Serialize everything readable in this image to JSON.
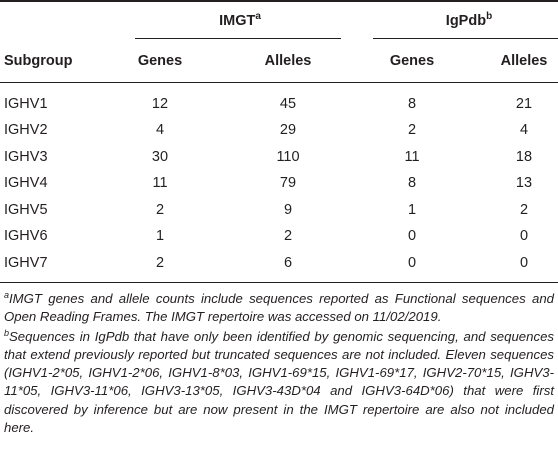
{
  "table": {
    "groups": [
      {
        "label": "IMGT",
        "sup": "a"
      },
      {
        "label": "IgPdb",
        "sup": "b"
      }
    ],
    "columns": [
      "Subgroup",
      "Genes",
      "Alleles",
      "Genes",
      "Alleles"
    ],
    "rows": [
      [
        "IGHV1",
        "12",
        "45",
        "8",
        "21"
      ],
      [
        "IGHV2",
        "4",
        "29",
        "2",
        "4"
      ],
      [
        "IGHV3",
        "30",
        "110",
        "11",
        "18"
      ],
      [
        "IGHV4",
        "11",
        "79",
        "8",
        "13"
      ],
      [
        "IGHV5",
        "2",
        "9",
        "1",
        "2"
      ],
      [
        "IGHV6",
        "1",
        "2",
        "0",
        "0"
      ],
      [
        "IGHV7",
        "2",
        "6",
        "0",
        "0"
      ]
    ]
  },
  "footnotes": [
    {
      "mark": "a",
      "text": "IMGT genes and allele counts include sequences reported as Functional sequences and Open Reading Frames. The IMGT repertoire was accessed on 11/02/2019."
    },
    {
      "mark": "b",
      "text": "Sequences in IgPdb that have only been identified by genomic sequencing, and sequences that extend previously reported but truncated sequences are not included. Eleven sequences (IGHV1-2*05, IGHV1-2*06, IGHV1-8*03, IGHV1-69*15, IGHV1-69*17, IGHV2-70*15, IGHV3-11*05, IGHV3-11*06, IGHV3-13*05, IGHV3-43D*04 and IGHV3-64D*06) that were first discovered by inference but are now present in the IMGT repertoire are also not included here."
    }
  ]
}
